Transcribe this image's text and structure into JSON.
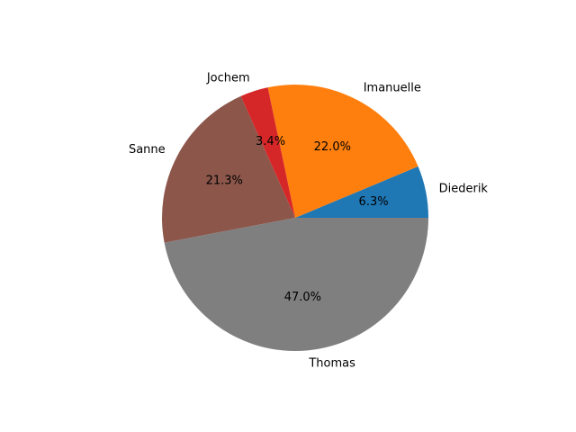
{
  "chart_data": {
    "type": "pie",
    "title": "",
    "start_angle_deg": 0,
    "direction": "counterclockwise",
    "labels": [
      "Diederik",
      "Imanuelle",
      "Jochem",
      "Sanne",
      "Thomas"
    ],
    "values": [
      6.3,
      22.0,
      3.4,
      21.3,
      47.0
    ],
    "percent_labels": [
      "6.3%",
      "22.0%",
      "3.4%",
      "21.3%",
      "47.0%"
    ],
    "colors": [
      "#1f77b4",
      "#ff7f0e",
      "#d62728",
      "#8c564b",
      "#7f7f7f"
    ],
    "legend": false
  }
}
